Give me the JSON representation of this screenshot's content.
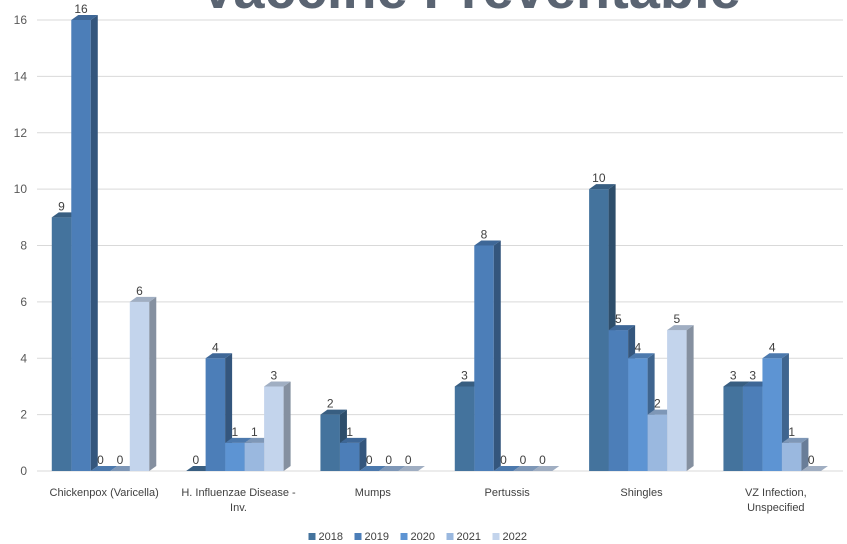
{
  "chart_data": {
    "type": "bar",
    "title": "Vaccine Preventable",
    "categories": [
      "Chickenpox (Varicella)",
      "H. Influenzae Disease - Inv.",
      "Mumps",
      "Pertussis",
      "Shingles",
      "VZ Infection, Unspecified"
    ],
    "category_lines": [
      [
        "Chickenpox (Varicella)"
      ],
      [
        "H. Influenzae Disease -",
        "Inv."
      ],
      [
        "Mumps"
      ],
      [
        "Pertussis"
      ],
      [
        "Shingles"
      ],
      [
        "VZ Infection,",
        "Unspecified"
      ]
    ],
    "series": [
      {
        "name": "2018",
        "values": [
          9,
          0,
          2,
          3,
          10,
          3
        ],
        "color": "#44739d"
      },
      {
        "name": "2019",
        "values": [
          16,
          4,
          1,
          8,
          5,
          3
        ],
        "color": "#4c7eb8"
      },
      {
        "name": "2020",
        "values": [
          0,
          1,
          0,
          0,
          4,
          4
        ],
        "color": "#5d94d3"
      },
      {
        "name": "2021",
        "values": [
          0,
          1,
          0,
          0,
          2,
          1
        ],
        "color": "#9ab8df"
      },
      {
        "name": "2022",
        "values": [
          6,
          3,
          0,
          0,
          5,
          0
        ],
        "color": "#c3d4ec"
      }
    ],
    "ylim": [
      0,
      16
    ],
    "yticks": [
      0,
      2,
      4,
      6,
      8,
      10,
      12,
      14,
      16
    ],
    "grid": true,
    "legend_position": "bottom"
  }
}
